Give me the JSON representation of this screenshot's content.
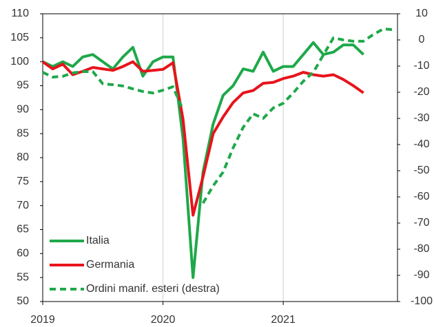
{
  "chart_data": {
    "type": "line",
    "x": [
      2019,
      2019.083,
      2019.167,
      2019.25,
      2019.333,
      2019.417,
      2019.5,
      2019.583,
      2019.667,
      2019.75,
      2019.833,
      2019.917,
      2020,
      2020.083,
      2020.167,
      2020.25,
      2020.333,
      2020.417,
      2020.5,
      2020.583,
      2020.667,
      2020.75,
      2020.833,
      2020.917,
      2021,
      2021.083,
      2021.167,
      2021.25,
      2021.333,
      2021.417,
      2021.5,
      2021.583,
      2021.667,
      2021.75,
      2021.833,
      2021.917
    ],
    "series": [
      {
        "name": "Italia",
        "color": "#1fa84a",
        "dash": false,
        "values": [
          100,
          99,
          100,
          99,
          101,
          101.5,
          100,
          98.5,
          101,
          103,
          97,
          100,
          101,
          101,
          84,
          55,
          77,
          87,
          93,
          95,
          98.5,
          98,
          102,
          98,
          99,
          99,
          101.5,
          104,
          101.5,
          102,
          103.5,
          103.5,
          101.5,
          null,
          null,
          null
        ]
      },
      {
        "name": "Germania",
        "color": "#e8131b",
        "dash": false,
        "values": [
          100,
          98.5,
          99.5,
          97.3,
          98,
          98.8,
          98.5,
          98.2,
          99,
          100,
          98,
          98.2,
          98.4,
          99.8,
          88,
          68,
          76,
          85,
          88.5,
          91.5,
          93.5,
          94,
          95.5,
          95.7,
          96.5,
          97,
          97.8,
          97.3,
          97,
          97.3,
          96.3,
          95,
          93.5,
          null,
          null,
          null
        ]
      },
      {
        "name": "Ordini manif. esteri (destra)",
        "color": "#1fa84a",
        "dash": true,
        "axis": "y2",
        "values": [
          -12.4,
          -14.2,
          -13.9,
          -12.6,
          -12.1,
          -12.1,
          -16.8,
          -17.1,
          -17.6,
          -18.7,
          -19.7,
          -20.3,
          -19.2,
          -17.9,
          -26.8,
          null,
          -62.4,
          -55.8,
          -50.5,
          -41.3,
          -33.4,
          -28.2,
          -30,
          -26,
          -24.2,
          -20.3,
          -15.8,
          -12.4,
          -5.8,
          0.8,
          0,
          -0.5,
          -0.5,
          2.1,
          4.2,
          3.9
        ]
      }
    ],
    "xlim": [
      2019,
      2021.95
    ],
    "xticks": [
      2019,
      2020,
      2021
    ],
    "ylim": [
      50,
      110
    ],
    "yticks": [
      50,
      55,
      60,
      65,
      70,
      75,
      80,
      85,
      90,
      95,
      100,
      105,
      110
    ],
    "y2lim": [
      -100,
      10
    ],
    "y2ticks": [
      -100,
      -90,
      -80,
      -70,
      -60,
      -50,
      -40,
      -30,
      -20,
      -10,
      0,
      10
    ],
    "grid": "x",
    "legend": "lower left"
  }
}
